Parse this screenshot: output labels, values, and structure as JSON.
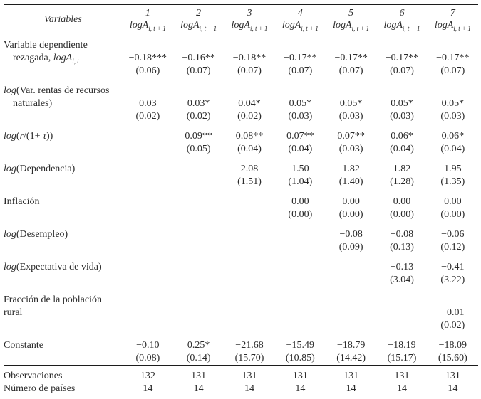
{
  "table": {
    "header": {
      "variables_label": "Variables",
      "column_numbers": [
        "1",
        "2",
        "3",
        "4",
        "5",
        "6",
        "7"
      ],
      "dep_var": {
        "prefix": "logA",
        "sub": "i, t + 1"
      }
    },
    "rows": [
      {
        "type": "label",
        "first": true,
        "label": [
          {
            "t": "Variable dependiente"
          }
        ]
      },
      {
        "type": "coef",
        "indent": true,
        "label": [
          {
            "t": "rezagada, "
          },
          {
            "t": "logA",
            "i": true
          },
          {
            "t": "i, t",
            "i": true,
            "sub": true
          }
        ],
        "values": [
          "−0.18***",
          "−0.16**",
          "−0.18**",
          "−0.17**",
          "−0.17**",
          "−0.17**",
          "−0.17**"
        ]
      },
      {
        "type": "se",
        "values": [
          "(0.06)",
          "(0.07)",
          "(0.07)",
          "(0.07)",
          "(0.07)",
          "(0.07)",
          "(0.07)"
        ]
      },
      {
        "type": "label",
        "gap": true,
        "label": [
          {
            "t": "log",
            "i": true
          },
          {
            "t": "(Var. rentas de recursos"
          }
        ]
      },
      {
        "type": "coef",
        "indent": true,
        "label": [
          {
            "t": "naturales)"
          }
        ],
        "values": [
          "0.03",
          "0.03*",
          "0.04*",
          "0.05*",
          "0.05*",
          "0.05*",
          "0.05*"
        ]
      },
      {
        "type": "se",
        "values": [
          "(0.02)",
          "(0.02)",
          "(0.02)",
          "(0.03)",
          "(0.03)",
          "(0.03)",
          "(0.03)"
        ]
      },
      {
        "type": "coef",
        "gap": true,
        "label": [
          {
            "t": "log",
            "i": true
          },
          {
            "t": "("
          },
          {
            "t": "r",
            "i": true
          },
          {
            "t": "/(1+ "
          },
          {
            "t": "τ",
            "i": true
          },
          {
            "t": "))"
          }
        ],
        "values": [
          "",
          "0.09**",
          "0.08**",
          "0.07**",
          "0.07**",
          "0.06*",
          "0.06*"
        ]
      },
      {
        "type": "se",
        "values": [
          "",
          "(0.05)",
          "(0.04)",
          "(0.04)",
          "(0.03)",
          "(0.04)",
          "(0.04)"
        ]
      },
      {
        "type": "coef",
        "gap": true,
        "label": [
          {
            "t": "log",
            "i": true
          },
          {
            "t": "(Dependencia)"
          }
        ],
        "values": [
          "",
          "",
          "2.08",
          "1.50",
          "1.82",
          "1.82",
          "1.95"
        ]
      },
      {
        "type": "se",
        "values": [
          "",
          "",
          "(1.51)",
          "(1.04)",
          "(1.40)",
          "(1.28)",
          "(1.35)"
        ]
      },
      {
        "type": "coef",
        "gap": true,
        "label": [
          {
            "t": "Inflación"
          }
        ],
        "values": [
          "",
          "",
          "",
          "0.00",
          "0.00",
          "0.00",
          "0.00"
        ]
      },
      {
        "type": "se",
        "values": [
          "",
          "",
          "",
          "(0.00)",
          "(0.00)",
          "(0.00)",
          "(0.00)"
        ]
      },
      {
        "type": "coef",
        "gap": true,
        "label": [
          {
            "t": "log",
            "i": true
          },
          {
            "t": "(Desempleo)"
          }
        ],
        "values": [
          "",
          "",
          "",
          "",
          "−0.08",
          "−0.08",
          "−0.06"
        ]
      },
      {
        "type": "se",
        "values": [
          "",
          "",
          "",
          "",
          "(0.09)",
          "(0.13)",
          "(0.12)"
        ]
      },
      {
        "type": "coef",
        "gap": true,
        "label": [
          {
            "t": "log",
            "i": true
          },
          {
            "t": "(Expectativa de vida)"
          }
        ],
        "values": [
          "",
          "",
          "",
          "",
          "",
          "−0.13",
          "−0.41"
        ]
      },
      {
        "type": "se",
        "values": [
          "",
          "",
          "",
          "",
          "",
          "(3.04)",
          "(3.22)"
        ]
      },
      {
        "type": "label",
        "gap": true,
        "label": [
          {
            "t": "Fracción de la población"
          }
        ]
      },
      {
        "type": "coef",
        "label": [
          {
            "t": "rural"
          }
        ],
        "values": [
          "",
          "",
          "",
          "",
          "",
          "",
          "−0.01"
        ]
      },
      {
        "type": "se",
        "values": [
          "",
          "",
          "",
          "",
          "",
          "",
          "(0.02)"
        ]
      },
      {
        "type": "coef",
        "gap": true,
        "label": [
          {
            "t": "Constante"
          }
        ],
        "values": [
          "−0.10",
          "0.25*",
          "−21.68",
          "−15.49",
          "−18.79",
          "−18.19",
          "−18.09"
        ]
      },
      {
        "type": "se",
        "values": [
          "(0.08)",
          "(0.14)",
          "(15.70)",
          "(10.85)",
          "(14.42)",
          "(15.17)",
          "(15.60)"
        ]
      }
    ],
    "footer_rows": [
      {
        "label": "Observaciones",
        "values": [
          "132",
          "131",
          "131",
          "131",
          "131",
          "131",
          "131"
        ]
      },
      {
        "label": "Número de países",
        "values": [
          "14",
          "14",
          "14",
          "14",
          "14",
          "14",
          "14"
        ]
      }
    ]
  }
}
